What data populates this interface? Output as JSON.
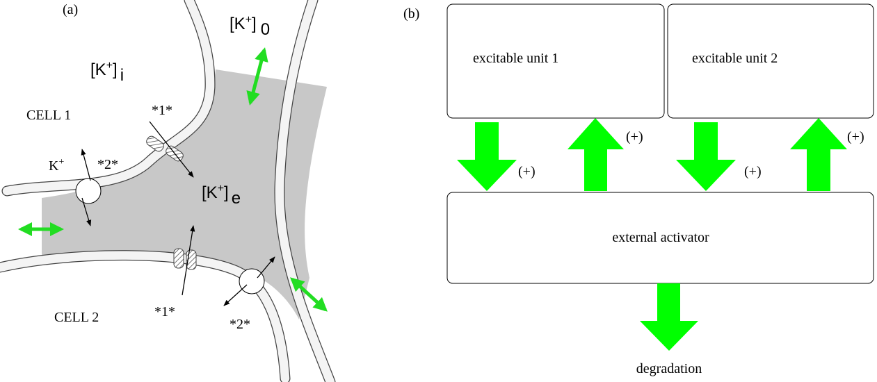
{
  "panel_a": {
    "label": "(a)",
    "k_outside": {
      "base": "[K",
      "sup": "+",
      "close": "]",
      "sub": "0"
    },
    "k_inside": {
      "base": "[K",
      "sup": "+",
      "close": "]",
      "sub": "i"
    },
    "k_extracellular": {
      "base": "[K",
      "sup": "+",
      "close": "]",
      "sub": "e"
    },
    "cell_1": "CELL 1",
    "cell_2": "CELL 2",
    "potassium": {
      "base": "K",
      "sup": "+"
    },
    "channel_labels": [
      "*1*",
      "*1*"
    ],
    "transporter_labels": [
      "*2*",
      "*2*"
    ]
  },
  "panel_b": {
    "label": "(b)",
    "nodes": [
      {
        "label": "excitable unit 1"
      },
      {
        "label": "excitable unit 2"
      },
      {
        "label": "external activator"
      }
    ],
    "edge_signs": [
      "(+)",
      "(+)",
      "(+)",
      "(+)"
    ],
    "output": "degradation"
  }
}
